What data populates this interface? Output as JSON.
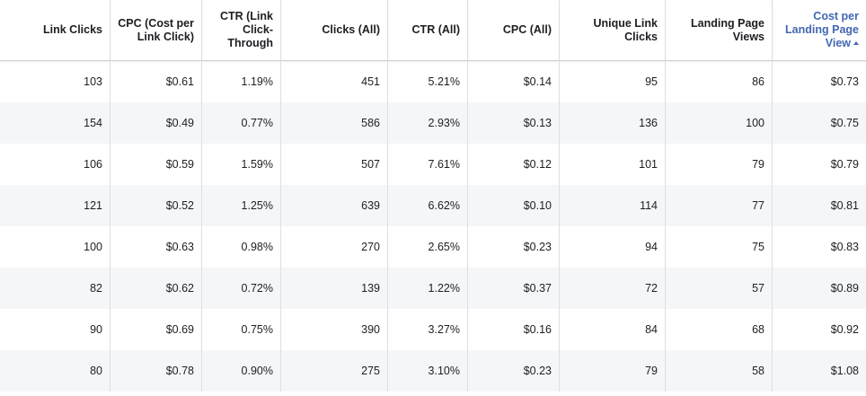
{
  "table": {
    "columns": [
      {
        "label": "Link Clicks"
      },
      {
        "label": "CPC (Cost per Link Click)"
      },
      {
        "label": "CTR (Link Click-Through"
      },
      {
        "label": "Clicks (All)"
      },
      {
        "label": "CTR (All)"
      },
      {
        "label": "CPC (All)"
      },
      {
        "label": "Unique Link Clicks"
      },
      {
        "label": "Landing Page Views"
      },
      {
        "label": "Cost per Landing Page View",
        "sorted": "ascending",
        "sort_icon": "sort-ascending-icon",
        "accent_color": "#4267b2"
      }
    ],
    "rows": [
      [
        "103",
        "$0.61",
        "1.19%",
        "451",
        "5.21%",
        "$0.14",
        "95",
        "86",
        "$0.73"
      ],
      [
        "154",
        "$0.49",
        "0.77%",
        "586",
        "2.93%",
        "$0.13",
        "136",
        "100",
        "$0.75"
      ],
      [
        "106",
        "$0.59",
        "1.59%",
        "507",
        "7.61%",
        "$0.12",
        "101",
        "79",
        "$0.79"
      ],
      [
        "121",
        "$0.52",
        "1.25%",
        "639",
        "6.62%",
        "$0.10",
        "114",
        "77",
        "$0.81"
      ],
      [
        "100",
        "$0.63",
        "0.98%",
        "270",
        "2.65%",
        "$0.23",
        "94",
        "75",
        "$0.83"
      ],
      [
        "82",
        "$0.62",
        "0.72%",
        "139",
        "1.22%",
        "$0.37",
        "72",
        "57",
        "$0.89"
      ],
      [
        "90",
        "$0.69",
        "0.75%",
        "390",
        "3.27%",
        "$0.16",
        "84",
        "68",
        "$0.92"
      ],
      [
        "80",
        "$0.78",
        "0.90%",
        "275",
        "3.10%",
        "$0.23",
        "79",
        "58",
        "$1.08"
      ]
    ]
  }
}
